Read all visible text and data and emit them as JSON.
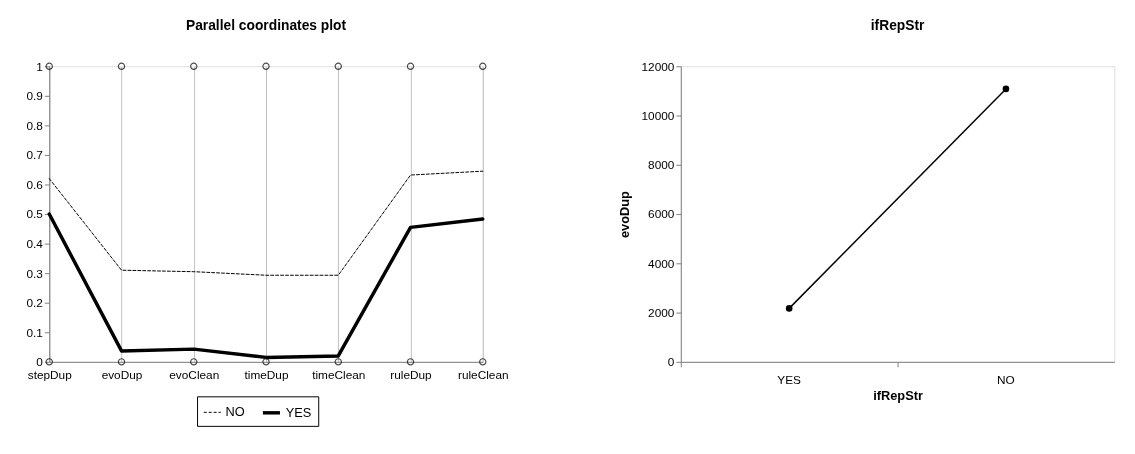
{
  "chart_data": [
    {
      "type": "line",
      "title": "Parallel coordinates plot",
      "categories": [
        "stepDup",
        "evoDup",
        "evoClean",
        "timeDup",
        "timeClean",
        "ruleDup",
        "ruleClean"
      ],
      "series": [
        {
          "name": "NO",
          "color": "#000000",
          "line_style": "dashed",
          "marker": "none",
          "values": [
            0.62,
            0.31,
            0.305,
            0.293,
            0.293,
            0.632,
            0.645
          ]
        },
        {
          "name": "YES",
          "color": "#000000",
          "line_style": "solid",
          "marker": "none",
          "values": [
            0.5,
            0.037,
            0.043,
            0.015,
            0.02,
            0.455,
            0.483
          ]
        },
        {
          "type": "scatter",
          "color": "#000000",
          "marker": "circle",
          "values": [
            1,
            1,
            1,
            1,
            1,
            1,
            1
          ]
        },
        {
          "type": "scatter",
          "color": "#000000",
          "marker": "circle",
          "values": [
            0,
            0,
            0,
            0,
            0,
            0,
            0
          ]
        }
      ],
      "ylim": [
        0,
        1
      ],
      "yticks": [
        0,
        0.1,
        0.2,
        0.3,
        0.4,
        0.5,
        0.6,
        0.7,
        0.8,
        0.9,
        1
      ],
      "grid": "x",
      "legend": "bottom"
    },
    {
      "type": "line",
      "title": "ifRepStr",
      "xlabel": "ifRepStr",
      "ylabel": "evoDup",
      "categories": [
        "YES",
        "NO"
      ],
      "series": [
        {
          "color": "#000000",
          "marker": "circle",
          "line_style": "solid",
          "values": [
            2170,
            11080
          ]
        }
      ],
      "ylim": [
        0,
        12000
      ],
      "yticks": [
        0,
        2000,
        4000,
        6000,
        8000,
        10000,
        12000
      ],
      "grid": false,
      "legend": false
    }
  ]
}
